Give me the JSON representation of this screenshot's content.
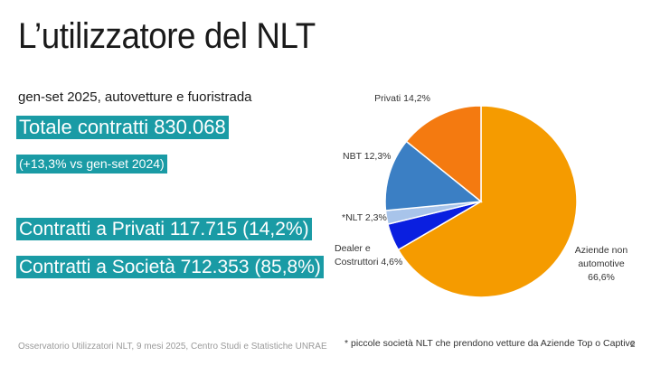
{
  "title": "L’utilizzatore del NLT",
  "subtitle": "gen-set 2025, autovetture e fuoristrada",
  "highlights": {
    "total": "Totale contratti 830.068",
    "growth": "(+13,3% vs  gen-set 2024)",
    "private": "Contratti a Privati  117.715 (14,2%)",
    "companies": "Contratti a Società 712.353 (85,8%)"
  },
  "footer": "Osservatorio Utilizzatori NLT, 9 mesi 2025, Centro Studi e Statistiche UNRAE",
  "footnote": "* piccole società NLT che prendono vetture da Aziende Top o Captive",
  "page_number": "2",
  "chart_data": {
    "type": "pie",
    "slices": [
      {
        "label": [
          "Aziende non",
          "automotive",
          "66,6%"
        ],
        "value": 66.6,
        "color": "#f59b00"
      },
      {
        "label": [
          "Dealer e",
          "Costruttori 4,6%"
        ],
        "value": 4.6,
        "color": "#0a1fe0"
      },
      {
        "label": [
          "*NLT 2,3%"
        ],
        "value": 2.3,
        "color": "#a8c4ea"
      },
      {
        "label": [
          "NBT 12,3%"
        ],
        "value": 12.3,
        "color": "#3b7fc4"
      },
      {
        "label": [
          "Privati 14,2%"
        ],
        "value": 14.2,
        "color": "#f47a10"
      }
    ],
    "start": "top",
    "direction": "clockwise"
  }
}
